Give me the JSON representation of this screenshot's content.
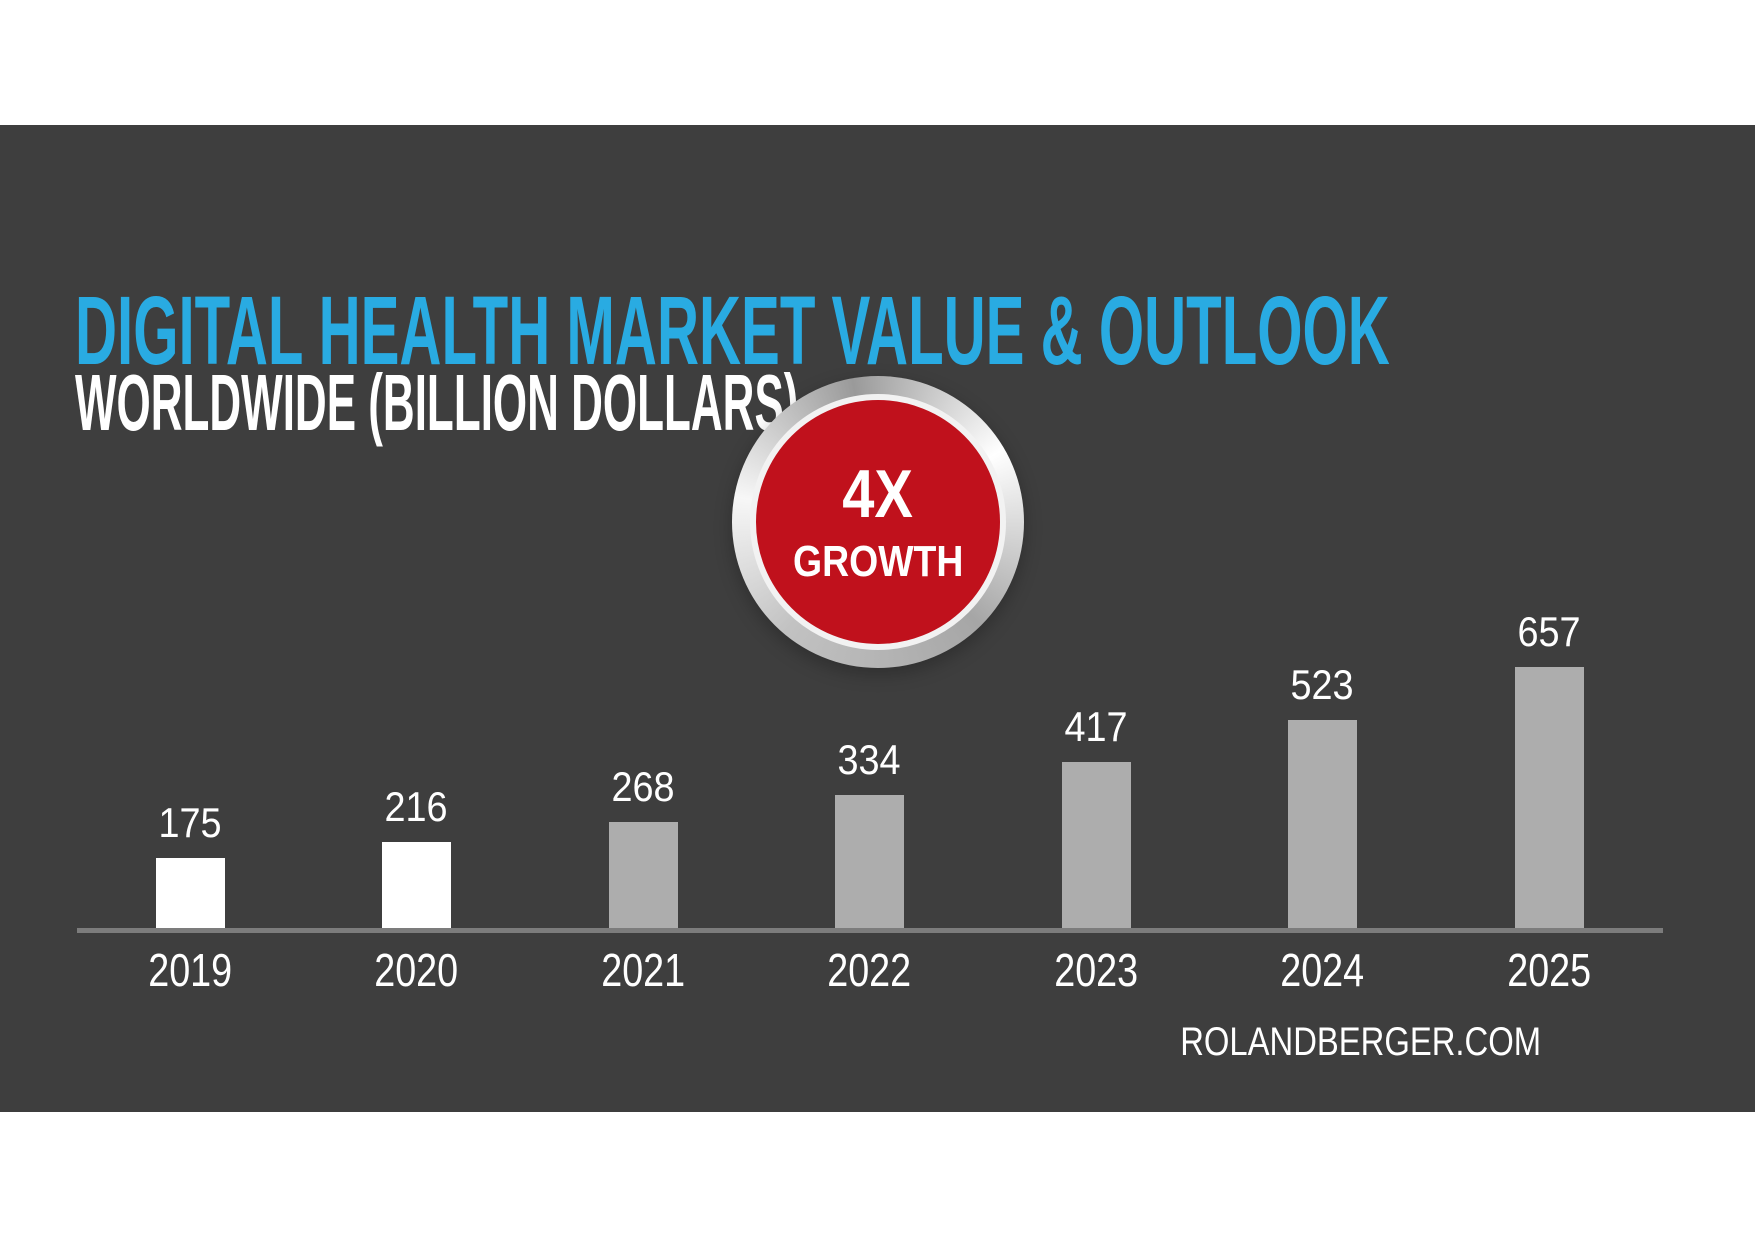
{
  "page": {
    "background": "#ffffff",
    "panel_background": "#3E3E3E"
  },
  "header": {
    "title": "DIGITAL HEALTH MARKET VALUE & OUTLOOK",
    "subtitle": "WORLDWIDE (BILLION DOLLARS)",
    "title_color": "#29ABE2",
    "subtitle_color": "#ffffff"
  },
  "badge": {
    "line1": "4X",
    "line2": "GROWTH",
    "fill_color": "#C0111C",
    "ring_style": "silver-metallic",
    "text_color": "#ffffff"
  },
  "source": {
    "label": "ROLANDBERGER.COM"
  },
  "chart_data": {
    "type": "bar",
    "categories": [
      "2019",
      "2020",
      "2021",
      "2022",
      "2023",
      "2024",
      "2025"
    ],
    "values": [
      175,
      216,
      268,
      334,
      417,
      523,
      657
    ],
    "bar_colors": [
      "#ffffff",
      "#ffffff",
      "#ADADAD",
      "#ADADAD",
      "#ADADAD",
      "#ADADAD",
      "#ADADAD"
    ],
    "data_labels": true,
    "value_label_color": "#ffffff",
    "category_label_color": "#ffffff",
    "axis_line_color": "#7C7C7C",
    "title": "DIGITAL HEALTH MARKET VALUE & OUTLOOK",
    "subtitle": "WORLDWIDE (BILLION DOLLARS)",
    "xlabel": "",
    "ylabel": "",
    "ylim": [
      0,
      700
    ],
    "grid": false,
    "legend": false,
    "annotation": "4X GROWTH"
  }
}
